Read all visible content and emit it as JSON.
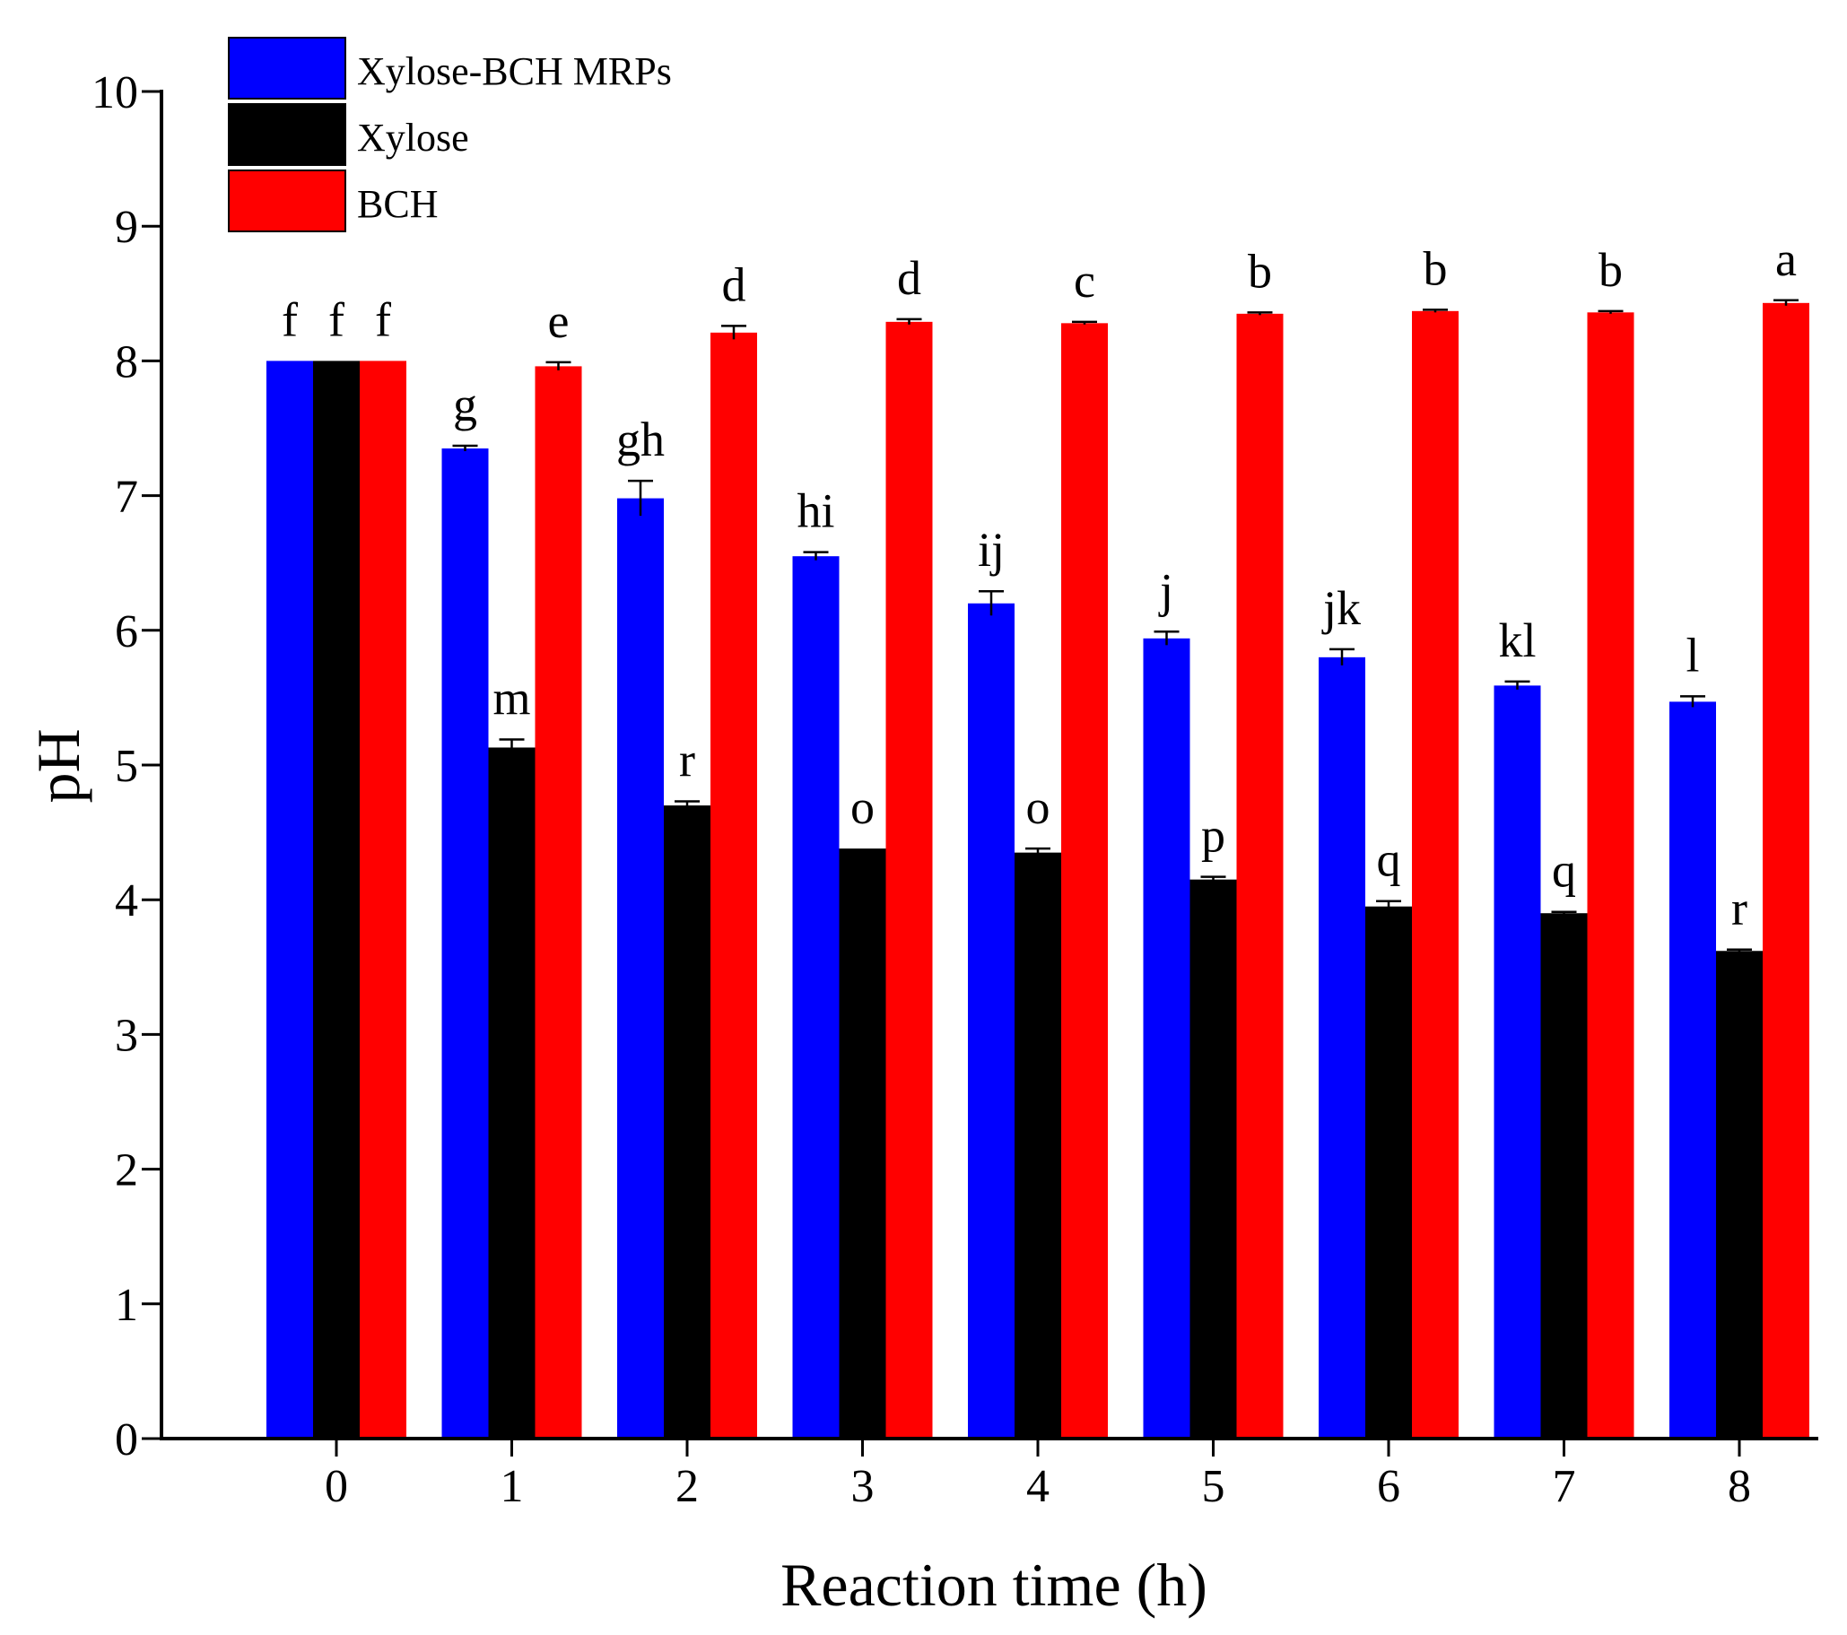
{
  "chart_data": {
    "type": "bar",
    "title": "",
    "xlabel": "Reaction time (h)",
    "ylabel": "pH",
    "ylim": [
      0,
      10
    ],
    "yticks": [
      0,
      1,
      2,
      3,
      4,
      5,
      6,
      7,
      8,
      9,
      10
    ],
    "categories": [
      "0",
      "1",
      "2",
      "3",
      "4",
      "5",
      "6",
      "7",
      "8"
    ],
    "legend_position": "top-left",
    "grid": false,
    "series": [
      {
        "name": "Xylose-BCH MRPs",
        "color": "#0000ff",
        "values": [
          8.0,
          7.35,
          6.98,
          6.55,
          6.2,
          5.94,
          5.8,
          5.59,
          5.47
        ],
        "errors": [
          0,
          0.02,
          0.13,
          0.03,
          0.09,
          0.05,
          0.06,
          0.03,
          0.04
        ],
        "labels": [
          "f",
          "g",
          "gh",
          "hi",
          "ij",
          "j",
          "jk",
          "kl",
          "l"
        ]
      },
      {
        "name": "Xylose",
        "color": "#000000",
        "values": [
          8.0,
          5.13,
          4.7,
          4.38,
          4.35,
          4.15,
          3.95,
          3.9,
          3.62
        ],
        "errors": [
          0,
          0.06,
          0.03,
          0,
          0.03,
          0.02,
          0.04,
          0.01,
          0.01
        ],
        "labels": [
          "f",
          "m",
          "r",
          "o",
          "o",
          "p",
          "q",
          "q",
          "r"
        ]
      },
      {
        "name": "BCH",
        "color": "#ff0000",
        "values": [
          8.0,
          7.96,
          8.21,
          8.29,
          8.28,
          8.35,
          8.37,
          8.36,
          8.43
        ],
        "errors": [
          0,
          0.03,
          0.05,
          0.02,
          0.01,
          0.01,
          0.01,
          0.01,
          0.02
        ],
        "labels": [
          "f",
          "e",
          "d",
          "d",
          "c",
          "b",
          "b",
          "b",
          "a"
        ]
      }
    ]
  }
}
